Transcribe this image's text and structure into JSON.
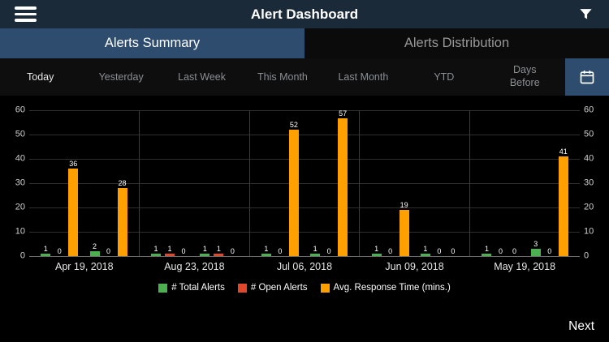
{
  "header": {
    "title": "Alert Dashboard"
  },
  "icons": {
    "menu": "hamburger-icon",
    "filter": "funnel-icon",
    "calendar": "calendar-icon"
  },
  "tabs": [
    {
      "label": "Alerts Summary",
      "active": true
    },
    {
      "label": "Alerts Distribution",
      "active": false
    }
  ],
  "time_filters": {
    "items": [
      "Today",
      "Yesterday",
      "Last Week",
      "This Month",
      "Last Month",
      "YTD",
      "Days Before"
    ],
    "selected": "Today"
  },
  "chart_data": {
    "type": "bar",
    "title": "",
    "xlabel": "",
    "ylabel": "",
    "ylim": [
      0,
      60
    ],
    "yticks": [
      0,
      10,
      20,
      30,
      40,
      50,
      60
    ],
    "grid": true,
    "legend_position": "bottom",
    "series": [
      {
        "name": "# Total Alerts",
        "color": "#4caf50"
      },
      {
        "name": "# Open Alerts",
        "color": "#e1472a"
      },
      {
        "name": "Avg. Response Time (mins.)",
        "color": "#ffa000"
      }
    ],
    "categories": [
      "Apr 19, 2018",
      "Aug 23, 2018",
      "Jul 06, 2018",
      "Jun 09, 2018",
      "May 19, 2018"
    ],
    "groups": [
      {
        "category": "Apr 19, 2018",
        "clusters": [
          [
            1,
            0,
            36
          ],
          [
            2,
            0,
            28
          ]
        ]
      },
      {
        "category": "Aug 23, 2018",
        "clusters": [
          [
            1,
            1,
            0
          ],
          [
            1,
            1,
            0
          ]
        ]
      },
      {
        "category": "Jul 06, 2018",
        "clusters": [
          [
            1,
            0,
            52
          ],
          [
            1,
            0,
            57
          ]
        ]
      },
      {
        "category": "Jun 09, 2018",
        "clusters": [
          [
            1,
            0,
            19
          ],
          [
            1,
            0,
            0
          ]
        ]
      },
      {
        "category": "May 19, 2018",
        "clusters": [
          [
            1,
            0,
            0
          ],
          [
            3,
            0,
            41
          ]
        ]
      }
    ]
  },
  "footer": {
    "next_label": "Next"
  }
}
